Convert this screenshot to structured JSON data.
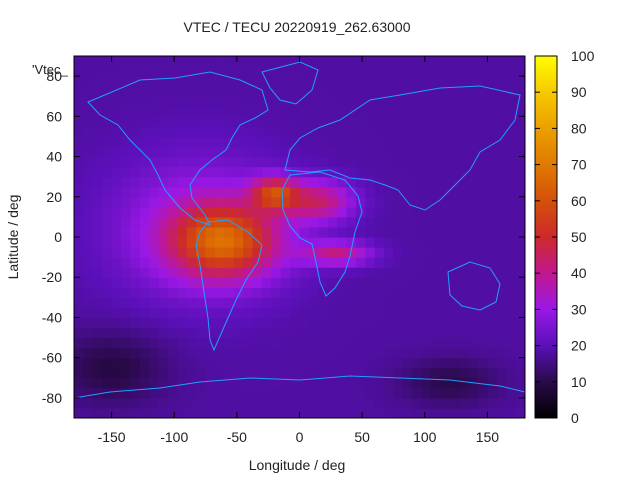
{
  "chart_data": {
    "type": "heatmap",
    "title": "VTEC / TECU 20220919_262.63000",
    "xlabel": "Longitude / deg",
    "ylabel": "Latitude / deg",
    "xlim": [
      -180,
      180
    ],
    "ylim": [
      -90,
      90
    ],
    "xticks": [
      -150,
      -100,
      -50,
      0,
      50,
      100,
      150
    ],
    "yticks": [
      -80,
      -60,
      -40,
      -20,
      0,
      20,
      40,
      60,
      80
    ],
    "colorbar": {
      "min": 0,
      "max": 100,
      "ticks": [
        0,
        10,
        20,
        30,
        40,
        50,
        60,
        70,
        80,
        90,
        100
      ]
    },
    "legend_label": "'Vtec_",
    "overlay": "coastlines",
    "blobs": [
      {
        "lon": -60,
        "lat": -2,
        "sx": 42,
        "sy": 18,
        "value": 38
      },
      {
        "lon": -20,
        "lat": 22,
        "sx": 18,
        "sy": 8,
        "value": 32
      },
      {
        "lon": 15,
        "lat": 18,
        "sx": 28,
        "sy": 10,
        "value": 24
      },
      {
        "lon": 30,
        "lat": -8,
        "sx": 28,
        "sy": 6,
        "value": 22
      },
      {
        "lon": -80,
        "lat": 5,
        "sx": 70,
        "sy": 35,
        "value": 14
      },
      {
        "lon": -150,
        "lat": -65,
        "sx": 45,
        "sy": 18,
        "value": -9
      },
      {
        "lon": 120,
        "lat": -72,
        "sx": 40,
        "sy": 12,
        "value": -8
      }
    ],
    "base_value": 18
  }
}
